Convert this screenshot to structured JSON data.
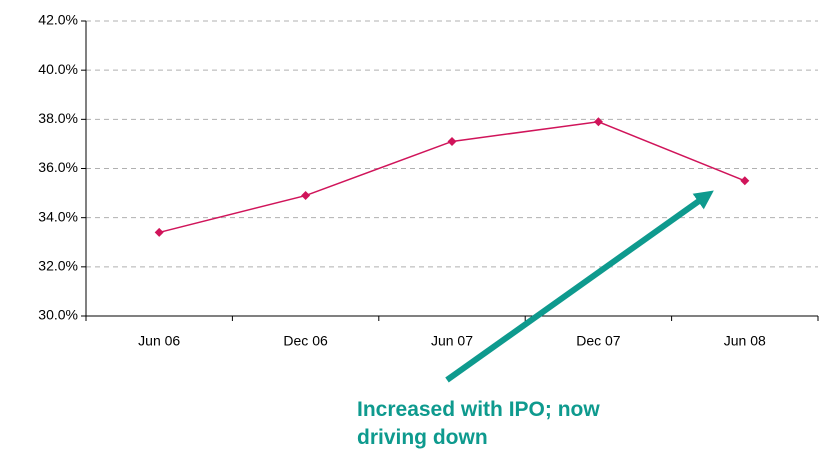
{
  "chart_data": {
    "type": "line",
    "categories": [
      "Jun 06",
      "Dec 06",
      "Jun 07",
      "Dec 07",
      "Jun 08"
    ],
    "series": [
      {
        "color": "#d0145a",
        "values": [
          33.4,
          34.9,
          37.1,
          37.9,
          35.5
        ]
      }
    ],
    "ylim": [
      30,
      42
    ],
    "yticks": [
      {
        "value": 30,
        "label": "30.0%"
      },
      {
        "value": 32,
        "label": "32.0%"
      },
      {
        "value": 34,
        "label": "34.0%"
      },
      {
        "value": 36,
        "label": "36.0%"
      },
      {
        "value": 38,
        "label": "38.0%"
      },
      {
        "value": 40,
        "label": "40.0%"
      },
      {
        "value": 42,
        "label": "42.0%"
      }
    ],
    "grid": true,
    "annotation": "Increased with IPO; now driving down"
  }
}
